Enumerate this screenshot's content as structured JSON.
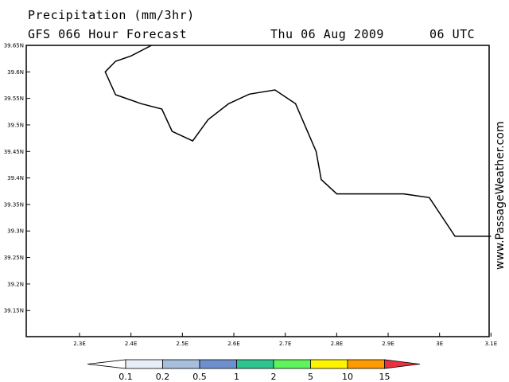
{
  "header": {
    "title": "Precipitation (mm/3hr)",
    "subtitle": "GFS 066 Hour Forecast",
    "date": "Thu 06 Aug 2009",
    "time": "06 UTC"
  },
  "side_label": "www.PassageWeather.com",
  "map": {
    "lat_ticks": [
      "39.65N",
      "39.6N",
      "39.55N",
      "39.5N",
      "39.45N",
      "39.4N",
      "39.35N",
      "39.3N",
      "39.25N",
      "39.2N",
      "39.15N"
    ],
    "lon_ticks": [
      "2.3E",
      "2.4E",
      "2.5E",
      "2.6E",
      "2.7E",
      "2.8E",
      "2.9E",
      "3E",
      "3.1E"
    ],
    "coastline": [
      [
        2.44,
        39.65
      ],
      [
        2.4,
        39.63
      ],
      [
        2.37,
        39.62
      ],
      [
        2.35,
        39.6
      ],
      [
        2.37,
        39.557
      ],
      [
        2.42,
        39.54
      ],
      [
        2.46,
        39.53
      ],
      [
        2.48,
        39.488
      ],
      [
        2.52,
        39.47
      ],
      [
        2.55,
        39.51
      ],
      [
        2.59,
        39.54
      ],
      [
        2.63,
        39.558
      ],
      [
        2.68,
        39.566
      ],
      [
        2.72,
        39.54
      ],
      [
        2.76,
        39.45
      ],
      [
        2.77,
        39.397
      ],
      [
        2.8,
        39.37
      ],
      [
        2.93,
        39.37
      ],
      [
        2.98,
        39.363
      ],
      [
        3.03,
        39.29
      ],
      [
        3.1,
        39.29
      ]
    ]
  },
  "colorbar": {
    "labels": [
      "0.1",
      "0.2",
      "0.5",
      "1",
      "2",
      "5",
      "10",
      "15"
    ],
    "colors": [
      "#ffffff",
      "#e8eef8",
      "#a8bedd",
      "#6e8fce",
      "#2ec48f",
      "#5ef55c",
      "#fff400",
      "#ff9a00",
      "#e8303f"
    ]
  }
}
